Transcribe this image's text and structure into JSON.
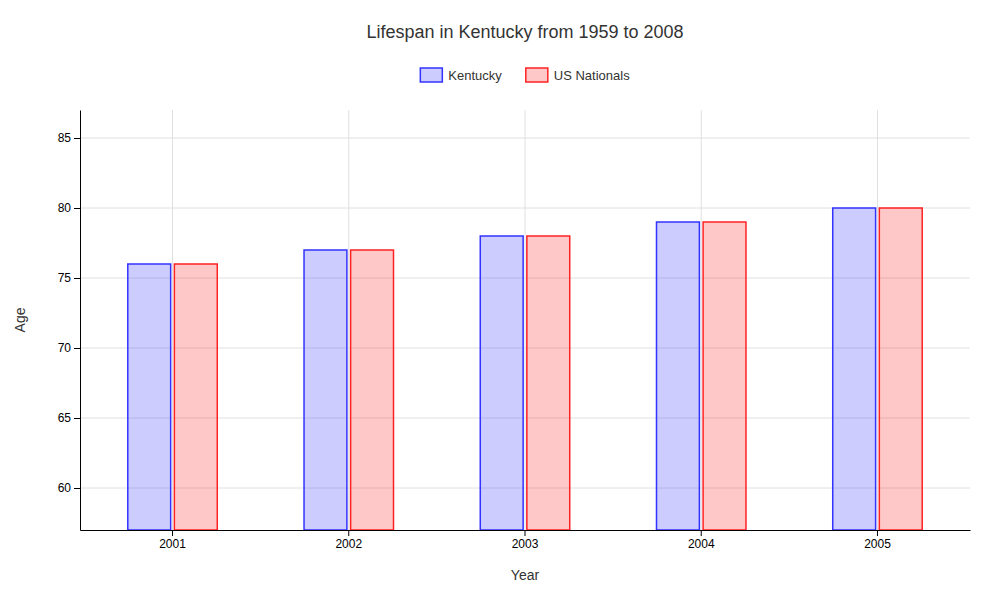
{
  "chart_data": {
    "type": "bar",
    "title": "Lifespan in Kentucky from 1959 to 2008",
    "categories": [
      "2001",
      "2002",
      "2003",
      "2004",
      "2005"
    ],
    "series": [
      {
        "name": "Kentucky",
        "color": "#3333ff",
        "values": [
          76,
          77,
          78,
          79,
          80
        ]
      },
      {
        "name": "US Nationals",
        "color": "#ff2222",
        "values": [
          76,
          77,
          78,
          79,
          80
        ]
      }
    ],
    "xlabel": "Year",
    "ylabel": "Age",
    "ylim": [
      57,
      87
    ],
    "yticks": [
      60,
      65,
      70,
      75,
      80,
      85
    ],
    "grid": true,
    "legend": "top"
  }
}
